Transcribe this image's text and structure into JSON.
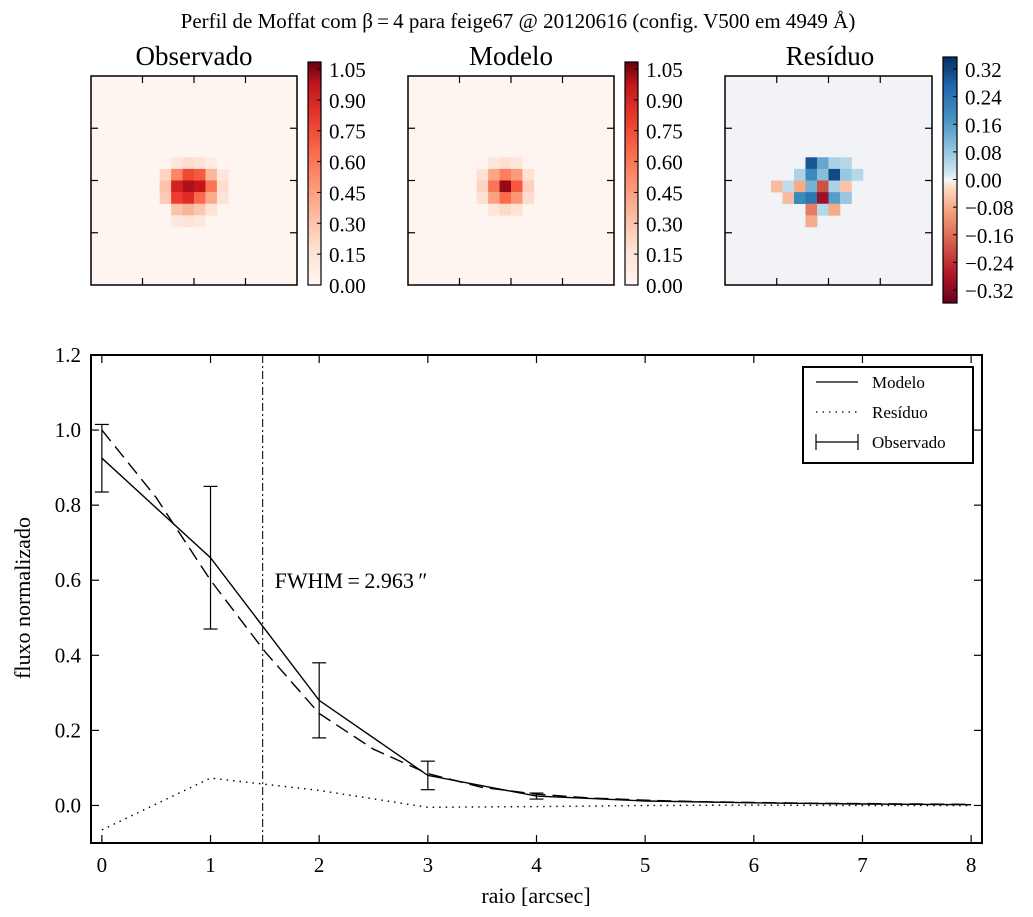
{
  "suptitle": "Perfil de Moffat com β = 4 para feige67 @ 20120616 (config. V500 em 4949 Å)",
  "panels": [
    {
      "title": "Observado",
      "colorbar_ticks": [
        "1.05",
        "0.90",
        "0.75",
        "0.60",
        "0.45",
        "0.30",
        "0.15",
        "0.00"
      ],
      "cmap": "Reds"
    },
    {
      "title": "Modelo",
      "colorbar_ticks": [
        "1.05",
        "0.90",
        "0.75",
        "0.60",
        "0.45",
        "0.30",
        "0.15",
        "0.00"
      ],
      "cmap": "Reds"
    },
    {
      "title": "Resíduo",
      "colorbar_ticks": [
        "0.32",
        "0.24",
        "0.16",
        "0.08",
        "0.00",
        "−0.08",
        "−0.16",
        "−0.24",
        "−0.32"
      ],
      "cmap": "RdBu"
    }
  ],
  "images": {
    "observado": [
      {
        "r": 7,
        "c": 7,
        "v": 0.12
      },
      {
        "r": 7,
        "c": 8,
        "v": 0.18
      },
      {
        "r": 7,
        "c": 9,
        "v": 0.14
      },
      {
        "r": 7,
        "c": 10,
        "v": 0.08
      },
      {
        "r": 8,
        "c": 6,
        "v": 0.22
      },
      {
        "r": 8,
        "c": 7,
        "v": 0.55
      },
      {
        "r": 8,
        "c": 8,
        "v": 0.78
      },
      {
        "r": 8,
        "c": 9,
        "v": 0.72
      },
      {
        "r": 8,
        "c": 10,
        "v": 0.35
      },
      {
        "r": 8,
        "c": 11,
        "v": 0.12
      },
      {
        "r": 9,
        "c": 6,
        "v": 0.3
      },
      {
        "r": 9,
        "c": 7,
        "v": 0.95
      },
      {
        "r": 9,
        "c": 8,
        "v": 1.02
      },
      {
        "r": 9,
        "c": 9,
        "v": 1.0
      },
      {
        "r": 9,
        "c": 10,
        "v": 0.62
      },
      {
        "r": 9,
        "c": 11,
        "v": 0.18
      },
      {
        "r": 10,
        "c": 6,
        "v": 0.26
      },
      {
        "r": 10,
        "c": 7,
        "v": 0.82
      },
      {
        "r": 10,
        "c": 8,
        "v": 0.9
      },
      {
        "r": 10,
        "c": 9,
        "v": 0.66
      },
      {
        "r": 10,
        "c": 10,
        "v": 0.4
      },
      {
        "r": 10,
        "c": 11,
        "v": 0.14
      },
      {
        "r": 11,
        "c": 7,
        "v": 0.3
      },
      {
        "r": 11,
        "c": 8,
        "v": 0.36
      },
      {
        "r": 11,
        "c": 9,
        "v": 0.28
      },
      {
        "r": 11,
        "c": 10,
        "v": 0.14
      },
      {
        "r": 12,
        "c": 7,
        "v": 0.1
      },
      {
        "r": 12,
        "c": 8,
        "v": 0.14
      },
      {
        "r": 12,
        "c": 9,
        "v": 0.1
      }
    ],
    "modelo": [
      {
        "r": 7,
        "c": 7,
        "v": 0.1
      },
      {
        "r": 7,
        "c": 8,
        "v": 0.16
      },
      {
        "r": 7,
        "c": 9,
        "v": 0.12
      },
      {
        "r": 8,
        "c": 6,
        "v": 0.16
      },
      {
        "r": 8,
        "c": 7,
        "v": 0.42
      },
      {
        "r": 8,
        "c": 8,
        "v": 0.58
      },
      {
        "r": 8,
        "c": 9,
        "v": 0.46
      },
      {
        "r": 8,
        "c": 10,
        "v": 0.16
      },
      {
        "r": 9,
        "c": 6,
        "v": 0.22
      },
      {
        "r": 9,
        "c": 7,
        "v": 0.62
      },
      {
        "r": 9,
        "c": 8,
        "v": 1.05
      },
      {
        "r": 9,
        "c": 9,
        "v": 0.72
      },
      {
        "r": 9,
        "c": 10,
        "v": 0.24
      },
      {
        "r": 10,
        "c": 6,
        "v": 0.16
      },
      {
        "r": 10,
        "c": 7,
        "v": 0.44
      },
      {
        "r": 10,
        "c": 8,
        "v": 0.66
      },
      {
        "r": 10,
        "c": 9,
        "v": 0.48
      },
      {
        "r": 10,
        "c": 10,
        "v": 0.18
      },
      {
        "r": 11,
        "c": 7,
        "v": 0.12
      },
      {
        "r": 11,
        "c": 8,
        "v": 0.2
      },
      {
        "r": 11,
        "c": 9,
        "v": 0.14
      }
    ],
    "residuo": [
      {
        "r": 7,
        "c": 7,
        "v": 0.3
      },
      {
        "r": 7,
        "c": 8,
        "v": 0.14
      },
      {
        "r": 7,
        "c": 9,
        "v": 0.06
      },
      {
        "r": 7,
        "c": 10,
        "v": 0.05
      },
      {
        "r": 8,
        "c": 6,
        "v": 0.06
      },
      {
        "r": 8,
        "c": 7,
        "v": 0.2
      },
      {
        "r": 8,
        "c": 8,
        "v": 0.1
      },
      {
        "r": 8,
        "c": 9,
        "v": 0.32
      },
      {
        "r": 8,
        "c": 10,
        "v": 0.08
      },
      {
        "r": 8,
        "c": 11,
        "v": 0.05
      },
      {
        "r": 9,
        "c": 4,
        "v": -0.06
      },
      {
        "r": 9,
        "c": 5,
        "v": 0.04
      },
      {
        "r": 9,
        "c": 6,
        "v": -0.08
      },
      {
        "r": 9,
        "c": 7,
        "v": 0.12
      },
      {
        "r": 9,
        "c": 8,
        "v": -0.2
      },
      {
        "r": 9,
        "c": 9,
        "v": 0.06
      },
      {
        "r": 9,
        "c": 10,
        "v": -0.05
      },
      {
        "r": 10,
        "c": 5,
        "v": -0.06
      },
      {
        "r": 10,
        "c": 6,
        "v": 0.2
      },
      {
        "r": 10,
        "c": 7,
        "v": 0.24
      },
      {
        "r": 10,
        "c": 8,
        "v": -0.3
      },
      {
        "r": 10,
        "c": 9,
        "v": 0.16
      },
      {
        "r": 10,
        "c": 10,
        "v": 0.08
      },
      {
        "r": 11,
        "c": 7,
        "v": -0.14
      },
      {
        "r": 11,
        "c": 8,
        "v": 0.05
      },
      {
        "r": 11,
        "c": 9,
        "v": -0.08
      },
      {
        "r": 12,
        "c": 7,
        "v": -0.08
      }
    ]
  },
  "chart_data": {
    "type": "line",
    "xlabel": "raio [arcsec]",
    "ylabel": "fluxo normalizado",
    "xlim": [
      -0.1,
      8.1
    ],
    "ylim": [
      -0.1,
      1.2
    ],
    "xticks": [
      "0",
      "1",
      "2",
      "3",
      "4",
      "5",
      "6",
      "7",
      "8"
    ],
    "yticks": [
      "−0.0",
      "0.2",
      "0.4",
      "0.6",
      "0.8",
      "1.0",
      "1.2"
    ],
    "ytick_labels": [
      "0.0",
      "0.2",
      "0.4",
      "0.6",
      "0.8",
      "1.0",
      "1.2"
    ],
    "legend": [
      "Modelo",
      "Resíduo",
      "Observado"
    ],
    "legend_position": "top-right",
    "fwhm_label": "FWHM = 2.963 ″",
    "fwhm_x": 1.48,
    "series": [
      {
        "name": "Observado",
        "style": "solid-errorbar",
        "x": [
          0,
          1,
          2,
          3,
          4,
          5,
          6,
          7,
          8
        ],
        "y": [
          0.925,
          0.66,
          0.28,
          0.08,
          0.025,
          0.012,
          0.007,
          0.004,
          0.002
        ],
        "err": [
          0.09,
          0.19,
          0.1,
          0.038,
          0.008,
          0.0,
          0.0,
          0.0,
          0.0
        ]
      },
      {
        "name": "Modelo",
        "style": "dashed",
        "x": [
          0,
          0.5,
          1,
          1.5,
          2,
          2.5,
          3,
          3.5,
          4,
          4.5,
          5,
          5.5,
          6,
          6.5,
          7,
          7.5,
          8
        ],
        "y": [
          1.0,
          0.82,
          0.6,
          0.41,
          0.245,
          0.15,
          0.085,
          0.048,
          0.03,
          0.02,
          0.014,
          0.01,
          0.008,
          0.006,
          0.005,
          0.004,
          0.003
        ]
      },
      {
        "name": "Resíduo",
        "style": "dotted",
        "x": [
          0,
          1,
          2,
          3,
          4,
          5,
          6,
          7,
          8
        ],
        "y": [
          -0.065,
          0.073,
          0.04,
          -0.005,
          -0.003,
          0.0,
          0.001,
          0.0,
          0.0
        ]
      }
    ]
  }
}
